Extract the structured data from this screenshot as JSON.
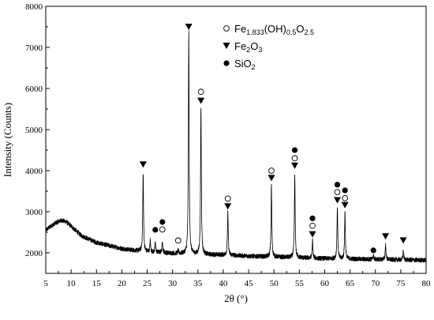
{
  "chart_data": {
    "type": "line",
    "title": "",
    "xlabel": "2θ (°)",
    "ylabel": "Intensity (Counts)",
    "xlim": [
      5,
      80
    ],
    "ylim": [
      1500,
      8000
    ],
    "x_ticks": [
      5,
      10,
      15,
      20,
      25,
      30,
      35,
      40,
      45,
      50,
      55,
      60,
      65,
      70,
      75,
      80
    ],
    "y_ticks": [
      2000,
      3000,
      4000,
      5000,
      6000,
      7000,
      8000
    ],
    "legend_position": "top-center",
    "legend": [
      {
        "marker": "open-circle",
        "name": "Fe1.833(OH)0.5O2.5",
        "parts": [
          {
            "t": "Fe",
            "s": "n"
          },
          {
            "t": "1.833",
            "s": "sub"
          },
          {
            "t": "(OH)",
            "s": "n"
          },
          {
            "t": "0.5",
            "s": "sub"
          },
          {
            "t": "O",
            "s": "n"
          },
          {
            "t": "2.5",
            "s": "sub"
          }
        ]
      },
      {
        "marker": "down-triangle",
        "name": "Fe2O3",
        "parts": [
          {
            "t": "Fe",
            "s": "n"
          },
          {
            "t": "2",
            "s": "sub"
          },
          {
            "t": "O",
            "s": "n"
          },
          {
            "t": "3",
            "s": "sub"
          }
        ]
      },
      {
        "marker": "filled-circle",
        "name": "SiO2",
        "parts": [
          {
            "t": "SiO",
            "s": "n"
          },
          {
            "t": "2",
            "s": "sub"
          }
        ]
      }
    ],
    "baseline": {
      "x": [
        5,
        6,
        7,
        8,
        9,
        10,
        12,
        15,
        20,
        25,
        30,
        35,
        40,
        45,
        50,
        55,
        60,
        65,
        70,
        75,
        80
      ],
      "y": [
        2550,
        2650,
        2730,
        2790,
        2760,
        2650,
        2420,
        2250,
        2100,
        2020,
        1990,
        1960,
        1950,
        1920,
        1900,
        1880,
        1860,
        1850,
        1840,
        1830,
        1820
      ]
    },
    "peaks": [
      {
        "x": 24.2,
        "y": 3950
      },
      {
        "x": 25.6,
        "y": 2300
      },
      {
        "x": 26.6,
        "y": 2250
      },
      {
        "x": 28.0,
        "y": 2300
      },
      {
        "x": 31.1,
        "y": 2050
      },
      {
        "x": 33.2,
        "y": 7350
      },
      {
        "x": 35.6,
        "y": 5550
      },
      {
        "x": 40.9,
        "y": 2980
      },
      {
        "x": 49.5,
        "y": 3650
      },
      {
        "x": 54.1,
        "y": 3900
      },
      {
        "x": 57.6,
        "y": 2300
      },
      {
        "x": 62.5,
        "y": 3100
      },
      {
        "x": 64.0,
        "y": 3000
      },
      {
        "x": 69.6,
        "y": 1950
      },
      {
        "x": 72.0,
        "y": 2200
      },
      {
        "x": 75.5,
        "y": 2050
      }
    ],
    "markers": [
      {
        "type": "down-triangle",
        "x": 24.2,
        "y": 4150
      },
      {
        "type": "down-triangle",
        "x": 33.2,
        "y": 7500
      },
      {
        "type": "down-triangle",
        "x": 35.6,
        "y": 5700
      },
      {
        "type": "down-triangle",
        "x": 40.9,
        "y": 3130
      },
      {
        "type": "down-triangle",
        "x": 49.5,
        "y": 3820
      },
      {
        "type": "down-triangle",
        "x": 54.1,
        "y": 4120
      },
      {
        "type": "down-triangle",
        "x": 57.6,
        "y": 2450
      },
      {
        "type": "down-triangle",
        "x": 62.5,
        "y": 3280
      },
      {
        "type": "down-triangle",
        "x": 64.0,
        "y": 3160
      },
      {
        "type": "down-triangle",
        "x": 72.0,
        "y": 2400
      },
      {
        "type": "down-triangle",
        "x": 75.5,
        "y": 2300
      },
      {
        "type": "open-circle",
        "x": 28.0,
        "y": 2570
      },
      {
        "type": "open-circle",
        "x": 31.1,
        "y": 2300
      },
      {
        "type": "open-circle",
        "x": 35.6,
        "y": 5920
      },
      {
        "type": "open-circle",
        "x": 40.9,
        "y": 3320
      },
      {
        "type": "open-circle",
        "x": 49.5,
        "y": 4000
      },
      {
        "type": "open-circle",
        "x": 54.1,
        "y": 4300
      },
      {
        "type": "open-circle",
        "x": 57.6,
        "y": 2660
      },
      {
        "type": "open-circle",
        "x": 62.5,
        "y": 3480
      },
      {
        "type": "open-circle",
        "x": 64.0,
        "y": 3330
      },
      {
        "type": "filled-circle",
        "x": 26.6,
        "y": 2560
      },
      {
        "type": "filled-circle",
        "x": 28.0,
        "y": 2750
      },
      {
        "type": "filled-circle",
        "x": 54.1,
        "y": 4500
      },
      {
        "type": "filled-circle",
        "x": 57.6,
        "y": 2840
      },
      {
        "type": "filled-circle",
        "x": 62.5,
        "y": 3660
      },
      {
        "type": "filled-circle",
        "x": 64.0,
        "y": 3520
      },
      {
        "type": "filled-circle",
        "x": 69.6,
        "y": 2060
      }
    ],
    "line_color": "#000000"
  }
}
